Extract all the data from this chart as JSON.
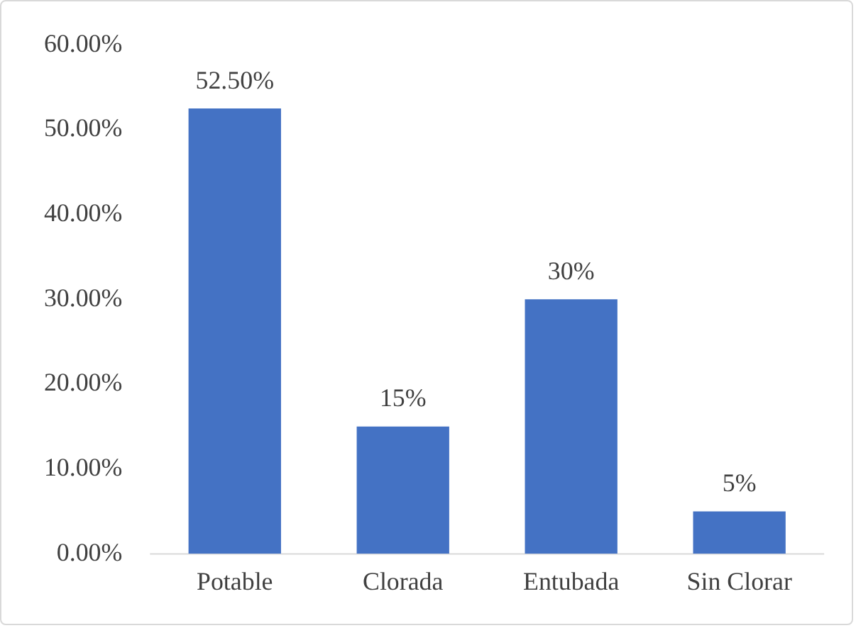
{
  "chart_data": {
    "type": "bar",
    "categories": [
      "Potable",
      "Clorada",
      "Entubada",
      "Sin Clorar"
    ],
    "values": [
      52.5,
      15,
      30,
      5
    ],
    "value_labels": [
      "52.50%",
      "15%",
      "30%",
      "5%"
    ],
    "color": "#4472c4",
    "ylim": [
      0,
      60
    ],
    "yticks": [
      {
        "value": 0,
        "label": "0.00%"
      },
      {
        "value": 10,
        "label": "10.00%"
      },
      {
        "value": 20,
        "label": "20.00%"
      },
      {
        "value": 30,
        "label": "30.00%"
      },
      {
        "value": 40,
        "label": "40.00%"
      },
      {
        "value": 50,
        "label": "50.00%"
      },
      {
        "value": 60,
        "label": "60.00%"
      }
    ],
    "grid": false,
    "legend": false
  }
}
